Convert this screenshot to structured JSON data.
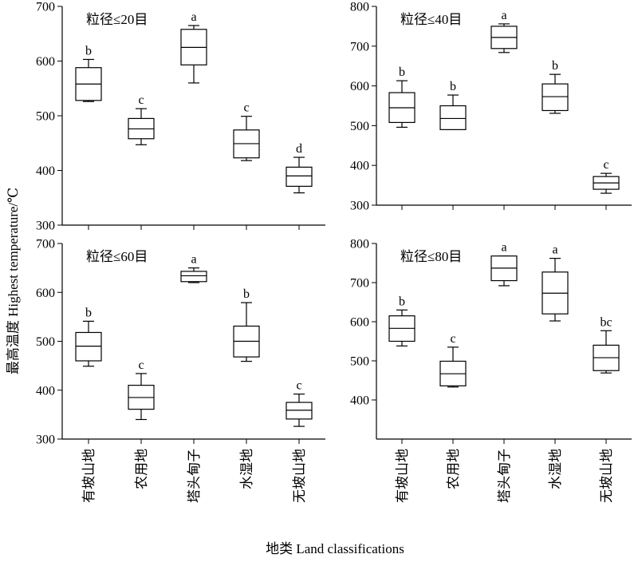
{
  "figure": {
    "xlabel": "地类 Land classifications",
    "ylabel": "最高温度 Highest temperature/℃"
  },
  "chart_data": [
    {
      "type": "box",
      "title": "粒径≤20目",
      "categories": [
        "有坡山地",
        "农用地",
        "塔头甸子",
        "水湿地",
        "无坡山地"
      ],
      "ylim": [
        300,
        700
      ],
      "yticks": [
        300,
        400,
        500,
        600,
        700
      ],
      "boxes": [
        {
          "min": 526,
          "q1": 528,
          "median": 558,
          "q3": 588,
          "max": 603,
          "label": "b"
        },
        {
          "min": 447,
          "q1": 458,
          "median": 476,
          "q3": 495,
          "max": 513,
          "label": "c"
        },
        {
          "min": 560,
          "q1": 593,
          "median": 625,
          "q3": 658,
          "max": 665,
          "label": "a"
        },
        {
          "min": 418,
          "q1": 423,
          "median": 449,
          "q3": 474,
          "max": 499,
          "label": "c"
        },
        {
          "min": 359,
          "q1": 371,
          "median": 390,
          "q3": 406,
          "max": 424,
          "label": "d"
        }
      ]
    },
    {
      "type": "box",
      "title": "粒径≤40目",
      "categories": [
        "有坡山地",
        "农用地",
        "塔头甸子",
        "水湿地",
        "无坡山地"
      ],
      "ylim": [
        300,
        800
      ],
      "yticks": [
        300,
        400,
        500,
        600,
        700,
        800
      ],
      "boxes": [
        {
          "min": 496,
          "q1": 508,
          "median": 545,
          "q3": 583,
          "max": 613,
          "label": "b"
        },
        {
          "min": 490,
          "q1": 490,
          "median": 518,
          "q3": 550,
          "max": 577,
          "label": "b"
        },
        {
          "min": 684,
          "q1": 694,
          "median": 722,
          "q3": 750,
          "max": 756,
          "label": "a"
        },
        {
          "min": 531,
          "q1": 538,
          "median": 573,
          "q3": 605,
          "max": 629,
          "label": "b"
        },
        {
          "min": 330,
          "q1": 340,
          "median": 356,
          "q3": 372,
          "max": 380,
          "label": "c"
        }
      ]
    },
    {
      "type": "box",
      "title": "粒径≤60目",
      "categories": [
        "有坡山地",
        "农用地",
        "塔头甸子",
        "水湿地",
        "无坡山地"
      ],
      "ylim": [
        300,
        700
      ],
      "yticks": [
        300,
        400,
        500,
        600,
        700
      ],
      "boxes": [
        {
          "min": 449,
          "q1": 460,
          "median": 490,
          "q3": 518,
          "max": 541,
          "label": "b"
        },
        {
          "min": 340,
          "q1": 361,
          "median": 385,
          "q3": 410,
          "max": 434,
          "label": "c"
        },
        {
          "min": 620,
          "q1": 622,
          "median": 634,
          "q3": 643,
          "max": 650,
          "label": "a"
        },
        {
          "min": 459,
          "q1": 468,
          "median": 500,
          "q3": 531,
          "max": 579,
          "label": "b"
        },
        {
          "min": 326,
          "q1": 341,
          "median": 359,
          "q3": 375,
          "max": 392,
          "label": "c"
        }
      ]
    },
    {
      "type": "box",
      "title": "粒径≤80目",
      "categories": [
        "有坡山地",
        "农用地",
        "塔头甸子",
        "水湿地",
        "无坡山地"
      ],
      "ylim": [
        300,
        800
      ],
      "yticks": [
        400,
        500,
        600,
        700,
        800
      ],
      "boxes": [
        {
          "min": 538,
          "q1": 550,
          "median": 583,
          "q3": 615,
          "max": 630,
          "label": "b"
        },
        {
          "min": 433,
          "q1": 436,
          "median": 467,
          "q3": 499,
          "max": 535,
          "label": "c"
        },
        {
          "min": 692,
          "q1": 705,
          "median": 737,
          "q3": 768,
          "max": 768,
          "label": "a"
        },
        {
          "min": 602,
          "q1": 620,
          "median": 673,
          "q3": 727,
          "max": 762,
          "label": "a"
        },
        {
          "min": 469,
          "q1": 475,
          "median": 508,
          "q3": 540,
          "max": 577,
          "label": "bc"
        }
      ]
    }
  ]
}
